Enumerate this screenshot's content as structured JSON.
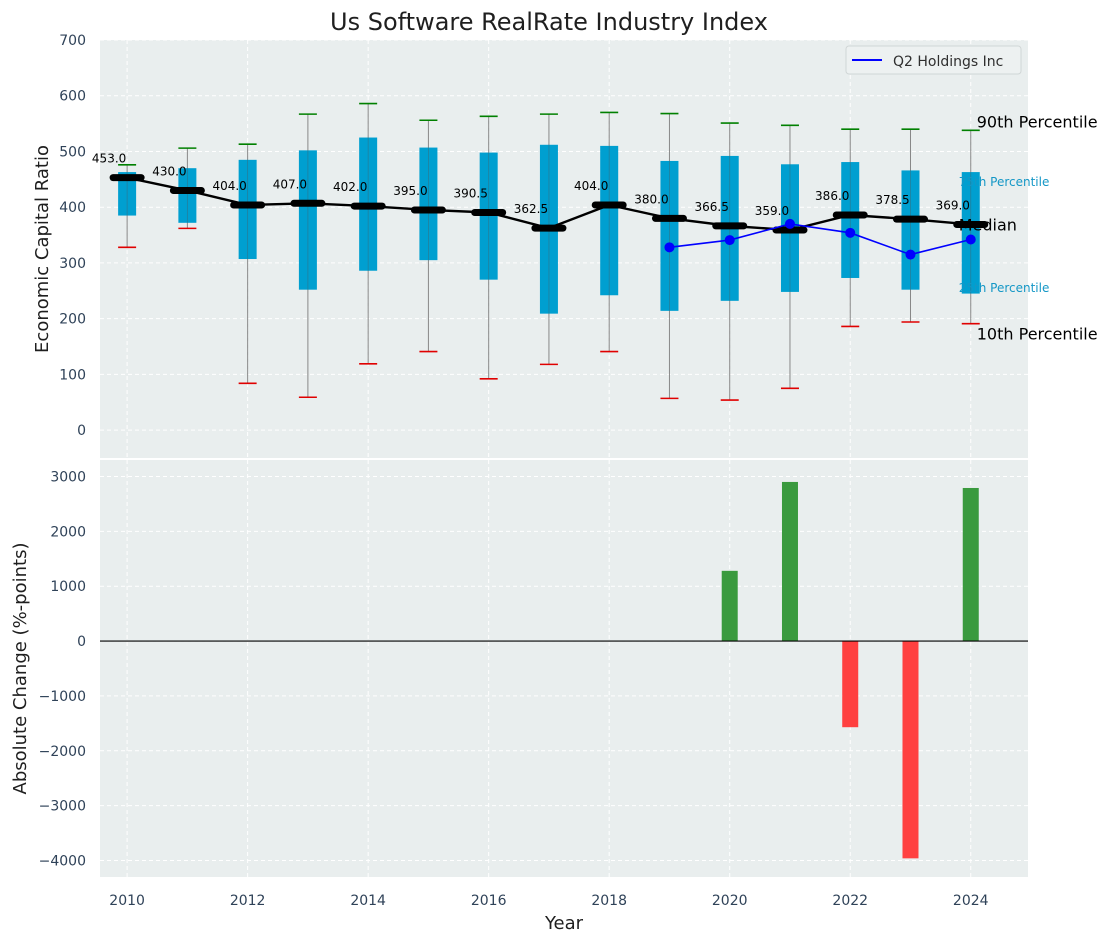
{
  "chart_data": [
    {
      "type": "box",
      "title": "Us Software RealRate Industry Index",
      "xlabel": "",
      "ylabel": "Economic Capital Ratio",
      "ylim": [
        -50,
        700
      ],
      "yticks": [
        0,
        100,
        200,
        300,
        400,
        500,
        600,
        700
      ],
      "grid": true,
      "legend": {
        "position": "top-right",
        "entries": [
          "Q2 Holdings Inc"
        ]
      },
      "percentile_labels": {
        "p90": "90th Percentile",
        "p75": "75th Percentile",
        "median": "Median",
        "p25": "25th Percentile",
        "p10": "10th Percentile"
      },
      "years": [
        2010,
        2011,
        2012,
        2013,
        2014,
        2015,
        2016,
        2017,
        2018,
        2019,
        2020,
        2021,
        2022,
        2023,
        2024
      ],
      "p90": [
        476,
        506,
        513,
        567,
        586,
        556,
        563,
        567,
        570,
        568,
        551,
        547,
        540,
        540,
        538
      ],
      "p75": [
        463,
        470,
        485,
        502,
        525,
        507,
        498,
        512,
        510,
        483,
        492,
        477,
        481,
        466,
        463
      ],
      "median": [
        453.0,
        430.0,
        404.0,
        407.0,
        402.0,
        395.0,
        390.5,
        362.5,
        404.0,
        380.0,
        366.5,
        359.0,
        386.0,
        378.5,
        369.0
      ],
      "median_labels": [
        "453.0",
        "430.0",
        "404.0",
        "407.0",
        "402.0",
        "395.0",
        "390.5",
        "362.5",
        "404.0",
        "380.0",
        "366.5",
        "359.0",
        "386.0",
        "378.5",
        "369.0"
      ],
      "p25": [
        385,
        372,
        307,
        252,
        286,
        305,
        270,
        209,
        242,
        214,
        232,
        248,
        273,
        252,
        245
      ],
      "p10": [
        328,
        362,
        84,
        59,
        119,
        141,
        92,
        118,
        141,
        57,
        54,
        75,
        186,
        194,
        191
      ],
      "series": [
        {
          "name": "Q2 Holdings Inc",
          "x": [
            2019,
            2020,
            2021,
            2022,
            2023,
            2024
          ],
          "values": [
            328,
            341,
            370,
            354,
            315,
            342
          ]
        }
      ],
      "colors": {
        "box": "#009fd0",
        "whisker": "#888888",
        "p90_cap": "#008000",
        "p10_cap": "#e00000",
        "median": "#000000",
        "company": "#0000ff",
        "plot_bg": "#e9eeee"
      }
    },
    {
      "type": "bar",
      "xlabel": "Year",
      "ylabel": "Absolute Change (%-points)",
      "ylim": [
        -4300,
        3300
      ],
      "yticks": [
        -4000,
        -3000,
        -2000,
        -1000,
        0,
        1000,
        2000,
        3000
      ],
      "grid": true,
      "xticks": [
        2010,
        2012,
        2014,
        2016,
        2018,
        2020,
        2022,
        2024
      ],
      "x": [
        2020,
        2021,
        2022,
        2023,
        2024
      ],
      "values": [
        1280,
        2900,
        -1570,
        -3960,
        2790
      ],
      "colors": {
        "positive": "#3a9a3e",
        "negative": "#ff4040",
        "plot_bg": "#e9eeee"
      }
    }
  ]
}
